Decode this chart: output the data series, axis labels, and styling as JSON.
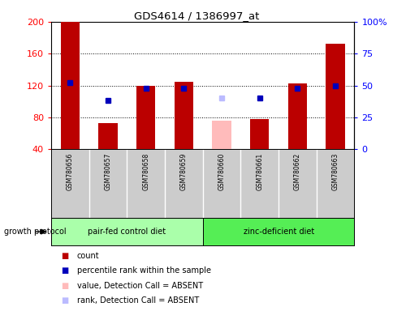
{
  "title": "GDS4614 / 1386997_at",
  "samples": [
    "GSM780656",
    "GSM780657",
    "GSM780658",
    "GSM780659",
    "GSM780660",
    "GSM780661",
    "GSM780662",
    "GSM780663"
  ],
  "count_values": [
    200,
    73,
    120,
    125,
    null,
    78,
    123,
    172
  ],
  "count_absent": [
    null,
    null,
    null,
    null,
    76,
    null,
    null,
    null
  ],
  "rank_values_pct": [
    null,
    null,
    48,
    48,
    null,
    null,
    48,
    50
  ],
  "rank_absent_pct": [
    null,
    null,
    null,
    null,
    40,
    null,
    null,
    null
  ],
  "percentile_present_pct": [
    52,
    38,
    null,
    null,
    null,
    40,
    null,
    null
  ],
  "ylim_left": [
    40,
    200
  ],
  "ylim_right": [
    0,
    100
  ],
  "yticks_left": [
    40,
    80,
    120,
    160,
    200
  ],
  "yticks_right": [
    0,
    25,
    50,
    75,
    100
  ],
  "ytick_labels_right": [
    "0",
    "25",
    "50",
    "75",
    "100%"
  ],
  "groups": [
    {
      "label": "pair-fed control diet",
      "indices": [
        0,
        1,
        2,
        3
      ],
      "color": "#aaffaa"
    },
    {
      "label": "zinc-deficient diet",
      "indices": [
        4,
        5,
        6,
        7
      ],
      "color": "#55ee55"
    }
  ],
  "group_label": "growth protocol",
  "bar_width": 0.5,
  "count_color": "#bb0000",
  "count_absent_color": "#ffbbbb",
  "rank_color": "#0000bb",
  "rank_absent_color": "#bbbbff",
  "bg_color": "#cccccc",
  "plot_bg": "#ffffff",
  "legend_items": [
    {
      "label": "count",
      "color": "#bb0000"
    },
    {
      "label": "percentile rank within the sample",
      "color": "#0000bb"
    },
    {
      "label": "value, Detection Call = ABSENT",
      "color": "#ffbbbb"
    },
    {
      "label": "rank, Detection Call = ABSENT",
      "color": "#bbbbff"
    }
  ]
}
